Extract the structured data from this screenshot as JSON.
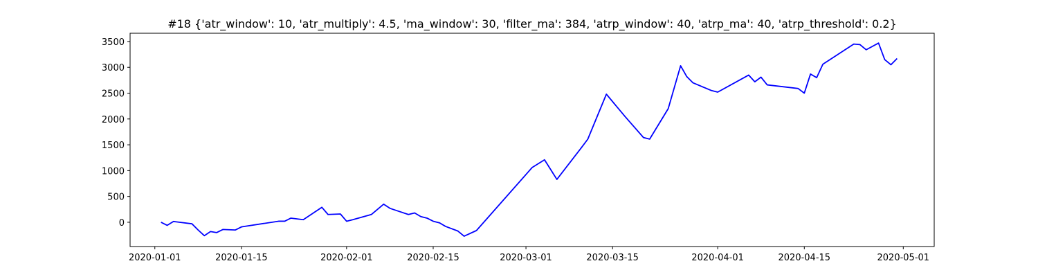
{
  "chart_data": {
    "type": "line",
    "title": "#18 {'atr_window': 10, 'atr_multiply': 4.5, 'ma_window': 30, 'filter_ma': 384, 'atrp_window': 40, 'atrp_ma': 40, 'atrp_threshold': 0.2}",
    "x": [
      "2020-01-02",
      "2020-01-03",
      "2020-01-04",
      "2020-01-07",
      "2020-01-08",
      "2020-01-09",
      "2020-01-10",
      "2020-01-11",
      "2020-01-12",
      "2020-01-14",
      "2020-01-15",
      "2020-01-21",
      "2020-01-22",
      "2020-01-23",
      "2020-01-25",
      "2020-01-28",
      "2020-01-29",
      "2020-01-31",
      "2020-02-01",
      "2020-02-02",
      "2020-02-05",
      "2020-02-07",
      "2020-02-08",
      "2020-02-09",
      "2020-02-11",
      "2020-02-12",
      "2020-02-13",
      "2020-02-14",
      "2020-02-15",
      "2020-02-16",
      "2020-02-17",
      "2020-02-19",
      "2020-02-20",
      "2020-02-22",
      "2020-03-02",
      "2020-03-04",
      "2020-03-06",
      "2020-03-10",
      "2020-03-11",
      "2020-03-14",
      "2020-03-17",
      "2020-03-20",
      "2020-03-21",
      "2020-03-24",
      "2020-03-26",
      "2020-03-27",
      "2020-03-28",
      "2020-03-31",
      "2020-04-01",
      "2020-04-06",
      "2020-04-07",
      "2020-04-08",
      "2020-04-09",
      "2020-04-14",
      "2020-04-15",
      "2020-04-16",
      "2020-04-17",
      "2020-04-18",
      "2020-04-23",
      "2020-04-24",
      "2020-04-25",
      "2020-04-27",
      "2020-04-28",
      "2020-04-29",
      "2020-04-30"
    ],
    "series": [
      {
        "color": "#0000ff",
        "values": [
          0,
          -60,
          15,
          -30,
          -150,
          -260,
          -180,
          -200,
          -140,
          -150,
          -90,
          20,
          20,
          80,
          50,
          290,
          150,
          160,
          20,
          50,
          150,
          350,
          270,
          230,
          150,
          180,
          110,
          80,
          20,
          -10,
          -80,
          -170,
          -270,
          -160,
          1060,
          1210,
          830,
          1450,
          1610,
          2480,
          2050,
          1640,
          1610,
          2200,
          3030,
          2820,
          2700,
          2550,
          2520,
          2850,
          2720,
          2810,
          2660,
          2590,
          2500,
          2870,
          2800,
          3060,
          3450,
          3440,
          3340,
          3470,
          3150,
          3050,
          3170
        ]
      }
    ],
    "xlim": [
      "2019-12-28",
      "2020-05-06"
    ],
    "xticks": [
      "2020-01-01",
      "2020-01-15",
      "2020-02-01",
      "2020-02-15",
      "2020-03-01",
      "2020-03-15",
      "2020-04-01",
      "2020-04-15",
      "2020-05-01"
    ],
    "ylim": [
      -470,
      3660
    ],
    "yticks": [
      0,
      500,
      1000,
      1500,
      2000,
      2500,
      3000,
      3500
    ]
  }
}
